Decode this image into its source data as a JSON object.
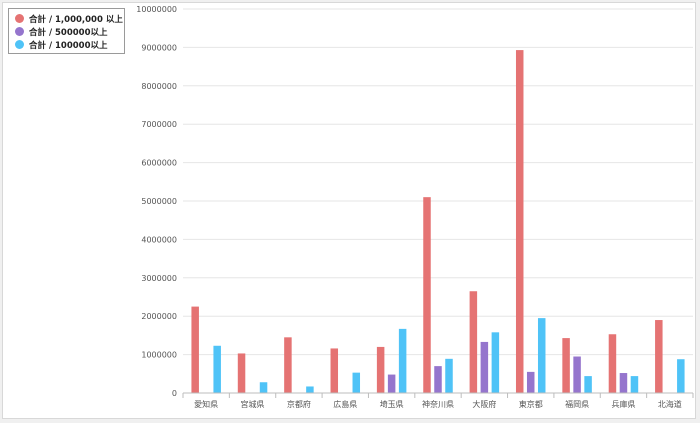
{
  "chart_data": {
    "type": "bar",
    "categories": [
      "愛知県",
      "宮城県",
      "京都府",
      "広島県",
      "埼玉県",
      "神奈川県",
      "大阪府",
      "東京都",
      "福岡県",
      "兵庫県",
      "北海道"
    ],
    "series": [
      {
        "name": "合計 / 1,000,000 以上",
        "color": "#e57373",
        "values": [
          2250000,
          1030000,
          1450000,
          1160000,
          1200000,
          5100000,
          2650000,
          8930000,
          1430000,
          1530000,
          1900000
        ]
      },
      {
        "name": "合計 / 500000以上",
        "color": "#9575cd",
        "values": [
          null,
          null,
          null,
          null,
          480000,
          700000,
          1330000,
          550000,
          950000,
          520000,
          null
        ]
      },
      {
        "name": "合計 / 100000以上",
        "color": "#4fc3f7",
        "values": [
          1230000,
          280000,
          170000,
          530000,
          1670000,
          890000,
          1580000,
          1950000,
          440000,
          440000,
          880000
        ]
      }
    ],
    "ylim": [
      0,
      10000000
    ],
    "yticks": [
      0,
      1000000,
      2000000,
      3000000,
      4000000,
      5000000,
      6000000,
      7000000,
      8000000,
      9000000,
      10000000
    ],
    "grid": true,
    "legend_position": "top-left"
  }
}
